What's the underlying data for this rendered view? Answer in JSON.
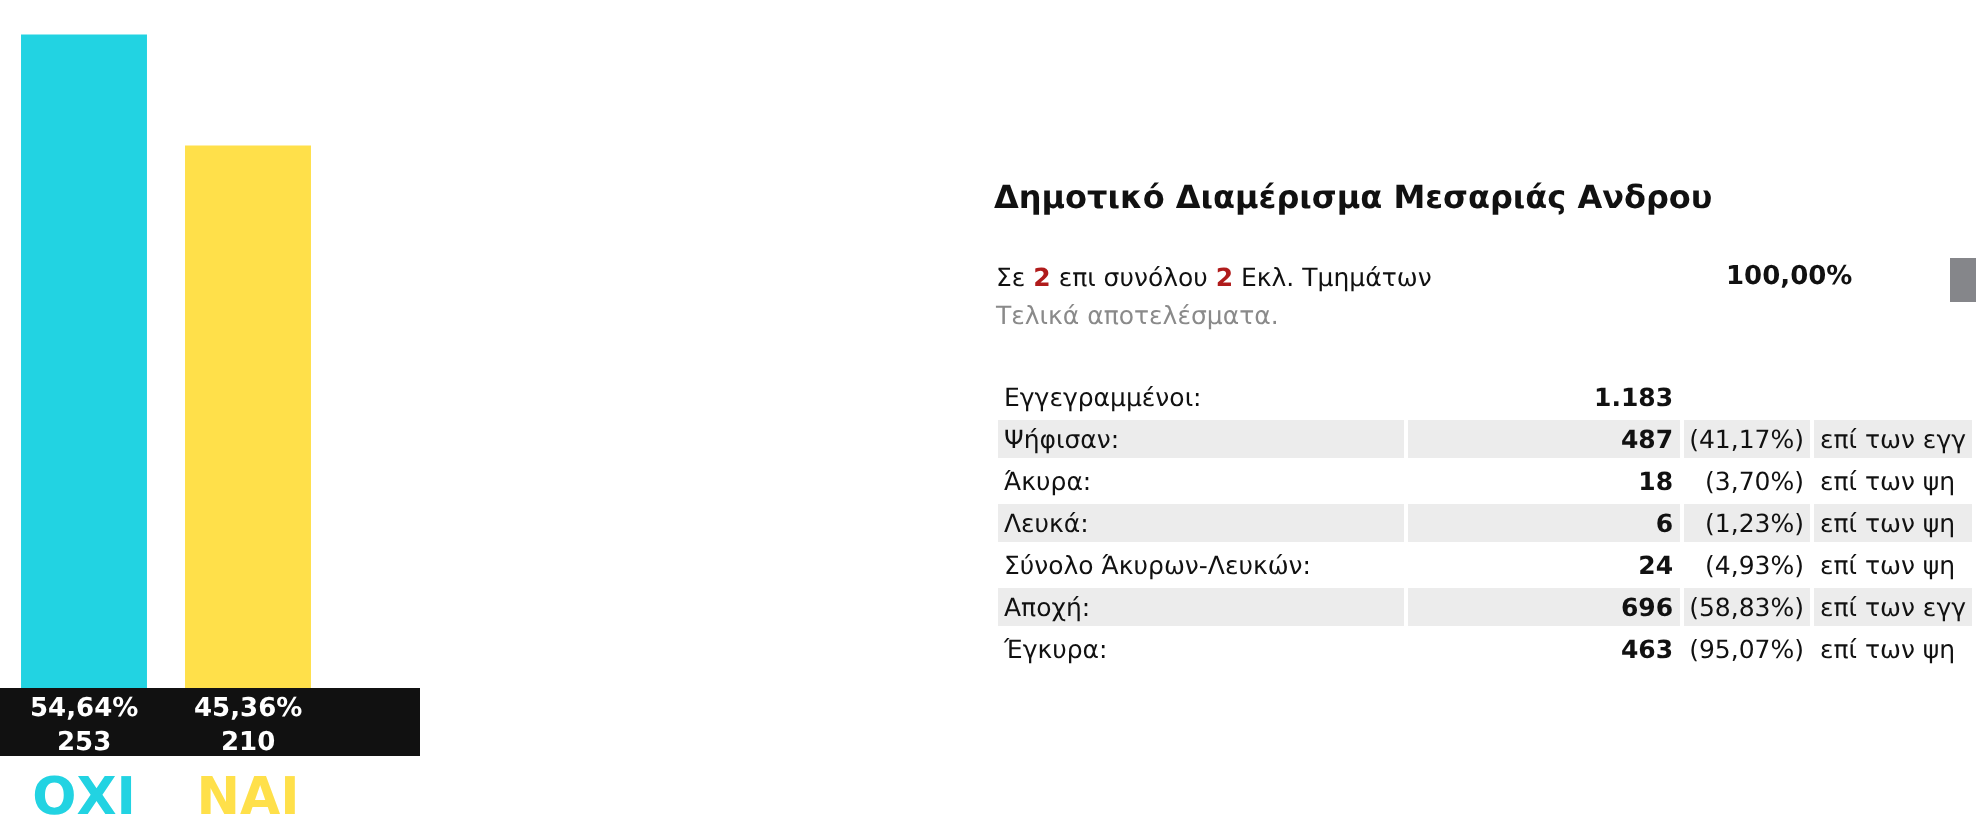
{
  "chart_data": [
    {
      "type": "bar",
      "categories": [
        "ΟΧΙ",
        "ΝΑΙ"
      ],
      "values": [
        253,
        210
      ],
      "colors": [
        "#22d3e2",
        "#ffe04a"
      ],
      "value_labels": [
        "54,64%\n253",
        "45,36%\n210"
      ],
      "tick_labels": "x"
    },
    {
      "type": "other",
      "title": "Δημοτικό Διαμέρισμα Μεσαριάς Ανδρου",
      "subtitle": "Σε 2 επι συνόλου 2 Εκλ. Τμημάτων",
      "annotations": [
        "100,00%",
        "Τελικά αποτελέσματα.",
        "Εγγεγραμμένοι:\t1.183",
        "Ψήφισαν:\t487\t(41,17%)\tεπί των εγγ",
        "Άκυρα:\t18\t(3,70%)\tεπί των ψη",
        "Λευκά:\t6\t(1,23%)\tεπί των ψη",
        "Σύνολο Άκυρων-Λευκών:\t24\t(4,93%)\tεπί των ψη",
        "Αποχή:\t696\t(58,83%)\tεπί των εγγ",
        "Έγκυρα:\t463\t(95,07%)\tεπί των ψη"
      ]
    }
  ]
}
